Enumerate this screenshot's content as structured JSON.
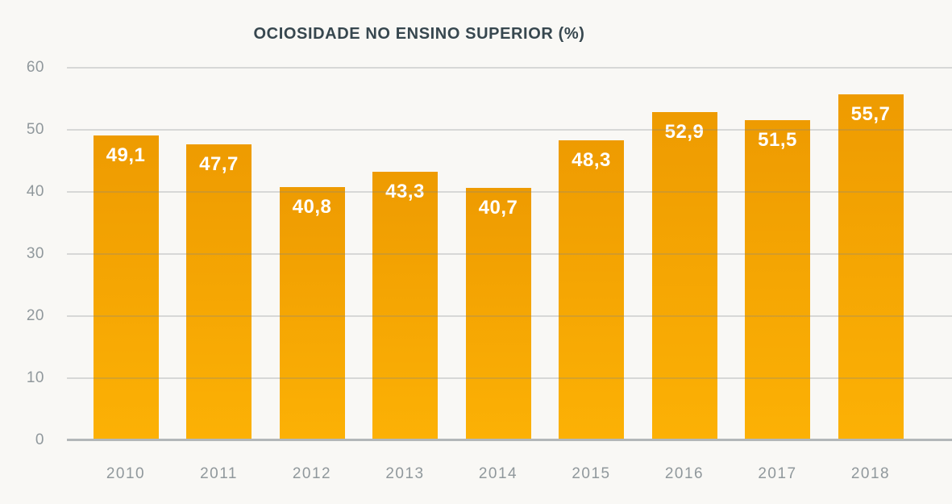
{
  "chart_data": {
    "type": "bar",
    "title": "OCIOSIDADE NO ENSINO SUPERIOR (%)",
    "categories": [
      "2010",
      "2011",
      "2012",
      "2013",
      "2014",
      "2015",
      "2016",
      "2017",
      "2018"
    ],
    "values": [
      49.1,
      47.7,
      40.8,
      43.3,
      40.7,
      48.3,
      52.9,
      51.5,
      55.7
    ],
    "value_labels": [
      "49,1",
      "47,7",
      "40,8",
      "43,3",
      "40,7",
      "48,3",
      "52,9",
      "51,5",
      "55,7"
    ],
    "xlabel": "",
    "ylabel": "",
    "ylim": [
      0,
      60
    ],
    "yticks": [
      0,
      10,
      20,
      30,
      40,
      50,
      60
    ],
    "grid": true,
    "legend": false,
    "colors": {
      "background": "#f9f8f5",
      "bar_gradient_top": "#ee9b01",
      "bar_gradient_bottom": "#fcb105",
      "grid_line": "rgba(130,134,136,0.28)",
      "axis_baseline": "#b3b7b9",
      "title_text": "#37474f",
      "tick_text": "#90989c",
      "bar_label_text": "#ffffff"
    }
  }
}
